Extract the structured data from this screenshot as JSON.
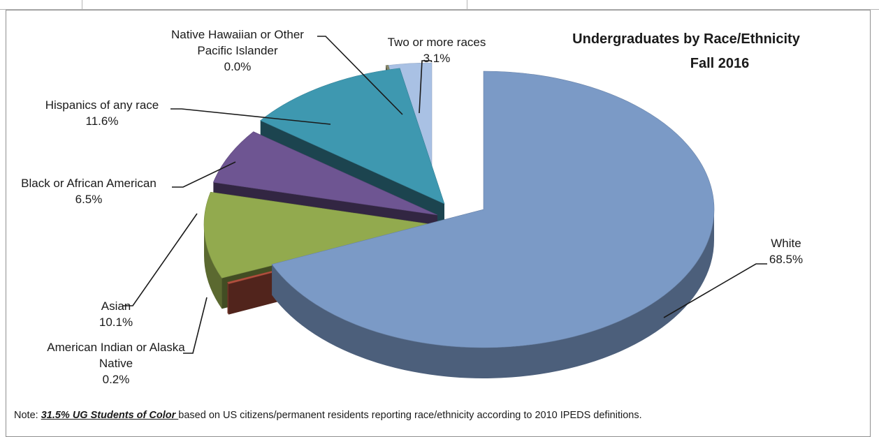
{
  "chart_data": {
    "type": "pie",
    "title": "Undergraduates by Race/Ethnicity",
    "subtitle": "Fall 2016",
    "slices": [
      {
        "label": "White",
        "value": 68.5,
        "value_label": "68.5%",
        "color": "#7b9ac6"
      },
      {
        "label": "American Indian or Alaska Native",
        "value": 0.2,
        "value_label": "0.2%",
        "color": "#b3503e"
      },
      {
        "label": "Asian",
        "value": 10.1,
        "value_label": "10.1%",
        "color": "#92aa4e"
      },
      {
        "label": "Black or African American",
        "value": 6.5,
        "value_label": "6.5%",
        "color": "#6e5592"
      },
      {
        "label": "Hispanics of any race",
        "value": 11.6,
        "value_label": "11.6%",
        "color": "#3e98b0"
      },
      {
        "label": "Native Hawaiian or Other Pacific Islander",
        "value": 0.0,
        "value_label": "0.0%",
        "color": "#8a8a6a"
      },
      {
        "label": "Two or more races",
        "value": 3.1,
        "value_label": "3.1%",
        "color": "#a9c1e4"
      }
    ],
    "style": "3d-exploded"
  },
  "note": {
    "prefix": "Note:  ",
    "highlight": "31.5% UG Students of Color ",
    "suffix": "based on US citizens/permanent residents reporting race/ethnicity according to 2010 IPEDS definitions."
  }
}
